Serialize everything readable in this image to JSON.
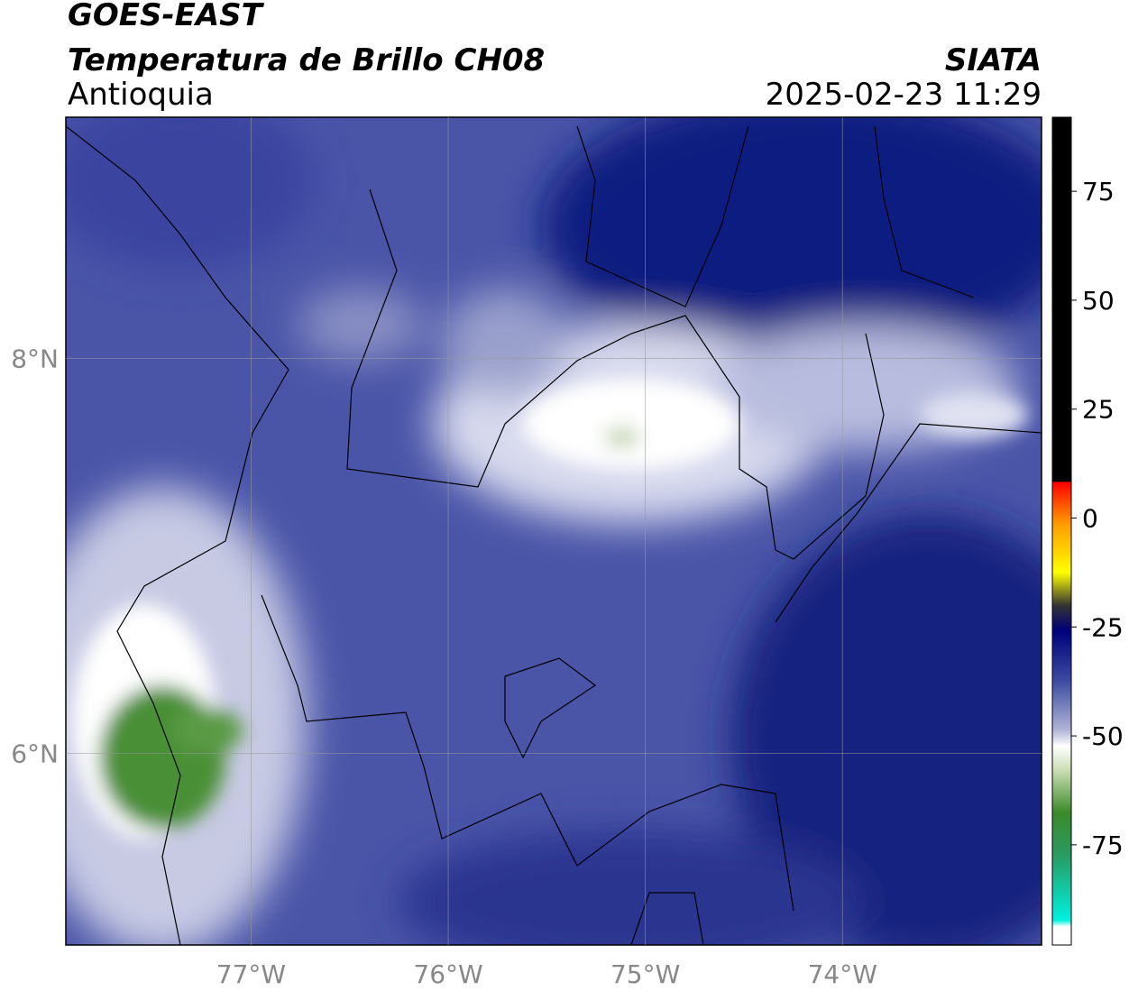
{
  "map": {
    "title": "GOES-EAST",
    "subtitle": "Temperatura de Brillo CH08",
    "region": "Antioquia",
    "source": "SIATA",
    "datetime": "2025-02-23 11:29",
    "xlim": [
      -77.94,
      -72.99
    ],
    "ylim": [
      5.03,
      9.22
    ],
    "xticks": [
      {
        "value": -77,
        "label": "77°W"
      },
      {
        "value": -76,
        "label": "76°W"
      },
      {
        "value": -75,
        "label": "75°W"
      },
      {
        "value": -74,
        "label": "74°W"
      }
    ],
    "yticks": [
      {
        "value": 6,
        "label": "6°N"
      },
      {
        "value": 8,
        "label": "8°N"
      }
    ],
    "grid": true
  },
  "colorbar": {
    "clim": [
      -98,
      92
    ],
    "ticks": [
      75,
      50,
      25,
      0,
      -25,
      -50,
      -75
    ]
  }
}
